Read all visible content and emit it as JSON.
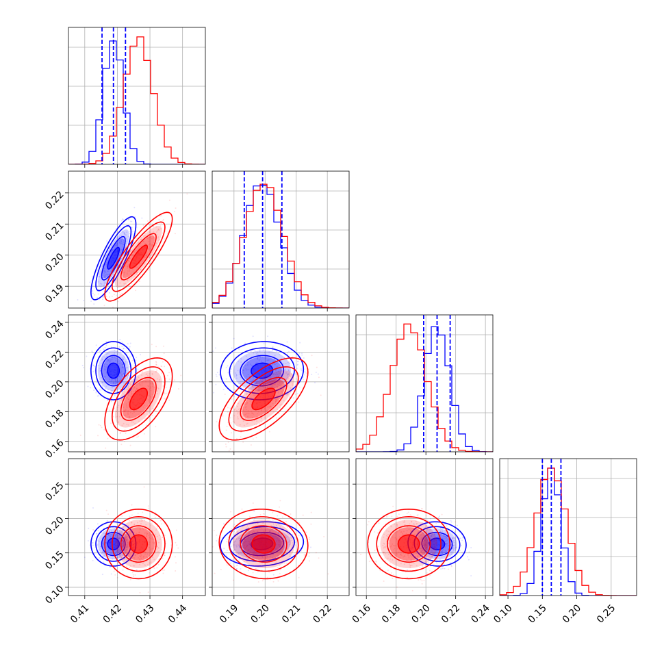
{
  "colors": {
    "blue": "#0000ff",
    "red": "#ff0000",
    "grid": "#b0b0b0"
  },
  "chart_data": {
    "type": "corner",
    "n_params": 4,
    "grid": true,
    "series": [
      {
        "color": "#0000ff"
      },
      {
        "color": "#ff0000"
      }
    ],
    "params": [
      {
        "range": [
          0.405,
          0.447
        ],
        "ticks": [
          0.41,
          0.42,
          0.43,
          0.44
        ],
        "tick_labels": [
          "0.41",
          "0.42",
          "0.43",
          "0.44"
        ],
        "quantile_lines": [
          0.4153,
          0.4188,
          0.4225
        ],
        "blue": {
          "mean": 0.4188,
          "sd": 0.003
        },
        "red": {
          "mean": 0.4265,
          "sd": 0.0045
        }
      },
      {
        "range": [
          0.183,
          0.227
        ],
        "ticks": [
          0.19,
          0.2,
          0.21,
          0.22
        ],
        "tick_labels": [
          "0.19",
          "0.20",
          "0.21",
          "0.22"
        ],
        "quantile_lines": [
          0.1933,
          0.1992,
          0.2054
        ],
        "blue": {
          "mean": 0.199,
          "sd": 0.0058
        },
        "red": {
          "mean": 0.1995,
          "sd": 0.0062
        }
      },
      {
        "range": [
          0.153,
          0.245
        ],
        "ticks": [
          0.16,
          0.18,
          0.2,
          0.22,
          0.24
        ],
        "tick_labels": [
          "0.16",
          "0.18",
          "0.20",
          "0.22",
          "0.24"
        ],
        "quantile_lines": [
          0.1985,
          0.2075,
          0.2163
        ],
        "blue": {
          "mean": 0.2075,
          "sd": 0.0085
        },
        "red": {
          "mean": 0.1885,
          "sd": 0.012
        }
      },
      {
        "range": [
          0.088,
          0.287
        ],
        "ticks": [
          0.1,
          0.15,
          0.2,
          0.25
        ],
        "tick_labels": [
          "0.10",
          "0.15",
          "0.20",
          "0.25"
        ],
        "quantile_lines": [
          0.15,
          0.163,
          0.177
        ],
        "blue": {
          "mean": 0.163,
          "sd": 0.014
        },
        "red": {
          "mean": 0.163,
          "sd": 0.022
        }
      }
    ],
    "correlations": {
      "blue": {
        "1_0": 0.82,
        "2_0": 0.0,
        "2_1": 0.05,
        "3_0": 0.0,
        "3_1": 0.1,
        "3_2": -0.05
      },
      "red": {
        "1_0": 0.85,
        "2_0": 0.55,
        "2_1": 0.65,
        "3_0": 0.0,
        "3_1": -0.05,
        "3_2": 0.0
      }
    }
  }
}
